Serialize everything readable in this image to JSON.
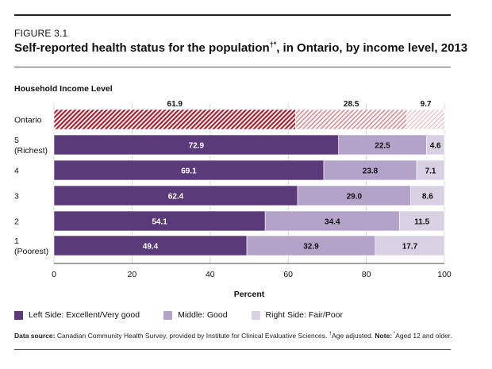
{
  "figure": {
    "label": "FIGURE 3.1",
    "title": "Self-reported health status for the population",
    "title_marks": "†*",
    "title_rest": ", in Ontario, by income level, 2013"
  },
  "chart_data": {
    "type": "bar",
    "orientation": "horizontal",
    "stacked": true,
    "y_header": "Household Income Level",
    "categories": [
      [
        "Ontario"
      ],
      [
        "5",
        "(Richest)"
      ],
      [
        "4"
      ],
      [
        "3"
      ],
      [
        "2"
      ],
      [
        "1",
        "(Poorest)"
      ]
    ],
    "series": [
      {
        "name": "Left Side: Excellent/Very good",
        "color": "#5b3a7a",
        "ontario_color": "#a61f2e",
        "values": [
          61.9,
          72.9,
          69.1,
          62.4,
          54.1,
          49.4
        ]
      },
      {
        "name": "Middle: Good",
        "color": "#b3a3c8",
        "ontario_color": "#d98a8e",
        "values": [
          28.5,
          22.5,
          23.8,
          29.0,
          34.4,
          32.9
        ]
      },
      {
        "name": "Right Side: Fair/Poor",
        "color": "#d9d0e3",
        "ontario_color": "#e8b7b9",
        "values": [
          9.7,
          4.6,
          7.1,
          8.6,
          11.5,
          17.7
        ]
      }
    ],
    "xlabel": "Percent",
    "xlim": [
      0,
      100
    ],
    "xticks": [
      0,
      20,
      40,
      60,
      80,
      100
    ],
    "grid": true,
    "legend_position": "bottom-left",
    "ontario_pattern": "diagonal-hatch"
  },
  "source": {
    "label": "Data source:",
    "text": " Canadian Community Health Survey, provided by Institute for Clinical Evaluative Sciences. ",
    "dagger": "†",
    "age_adjusted": "Age adjusted. ",
    "note_label": "Note:",
    "star": " *",
    "note_text": "Aged 12 and older."
  }
}
